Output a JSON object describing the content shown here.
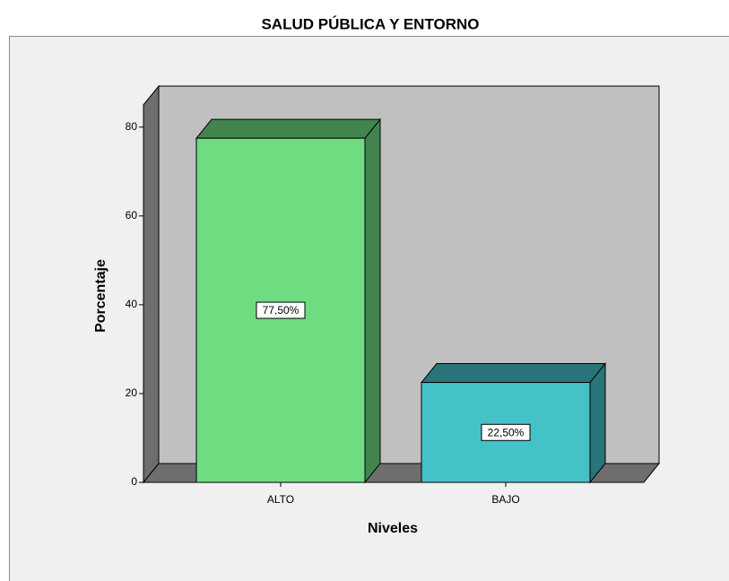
{
  "chart_data": {
    "type": "bar3d",
    "title": "SALUD PÚBLICA Y ENTORNO",
    "x_label": "Niveles",
    "y_label": "Porcentaje",
    "categories": [
      "ALTO",
      "BAJO"
    ],
    "values": [
      77.5,
      22.5
    ],
    "value_labels": [
      "77,50%",
      "22,50%"
    ],
    "colors": [
      "#6fdc82",
      "#45c1c8"
    ],
    "ylim": [
      0,
      85
    ],
    "yticks": [
      0,
      20,
      40,
      60,
      80
    ]
  }
}
